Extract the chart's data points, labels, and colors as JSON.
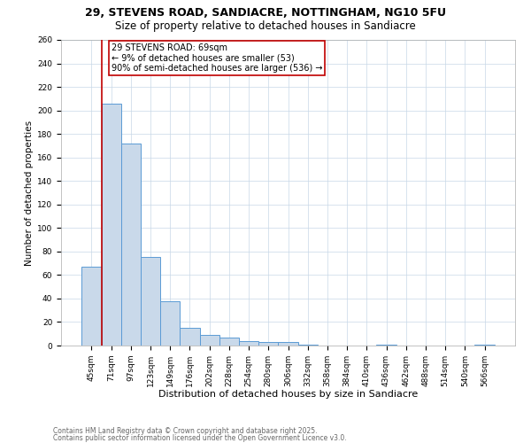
{
  "title_line1": "29, STEVENS ROAD, SANDIACRE, NOTTINGHAM, NG10 5FU",
  "title_line2": "Size of property relative to detached houses in Sandiacre",
  "xlabel": "Distribution of detached houses by size in Sandiacre",
  "ylabel": "Number of detached properties",
  "categories": [
    "45sqm",
    "71sqm",
    "97sqm",
    "123sqm",
    "149sqm",
    "176sqm",
    "202sqm",
    "228sqm",
    "254sqm",
    "280sqm",
    "306sqm",
    "332sqm",
    "358sqm",
    "384sqm",
    "410sqm",
    "436sqm",
    "462sqm",
    "488sqm",
    "514sqm",
    "540sqm",
    "566sqm"
  ],
  "values": [
    67,
    206,
    172,
    75,
    38,
    15,
    9,
    7,
    4,
    3,
    3,
    1,
    0,
    0,
    0,
    1,
    0,
    0,
    0,
    0,
    1
  ],
  "bar_color": "#c9d9ea",
  "bar_edge_color": "#5b9bd5",
  "highlight_color": "#c00000",
  "annotation_line1": "29 STEVENS ROAD: 69sqm",
  "annotation_line2": "← 9% of detached houses are smaller (53)",
  "annotation_line3": "90% of semi-detached houses are larger (536) →",
  "footer_line1": "Contains HM Land Registry data © Crown copyright and database right 2025.",
  "footer_line2": "Contains public sector information licensed under the Open Government Licence v3.0.",
  "bg_color": "#ffffff",
  "grid_color": "#c8d8e8",
  "ylim": [
    0,
    260
  ],
  "yticks": [
    0,
    20,
    40,
    60,
    80,
    100,
    120,
    140,
    160,
    180,
    200,
    220,
    240,
    260
  ],
  "title1_fontsize": 9,
  "title2_fontsize": 8.5,
  "xlabel_fontsize": 8,
  "ylabel_fontsize": 7.5,
  "tick_fontsize": 6.5,
  "footer_fontsize": 5.5
}
